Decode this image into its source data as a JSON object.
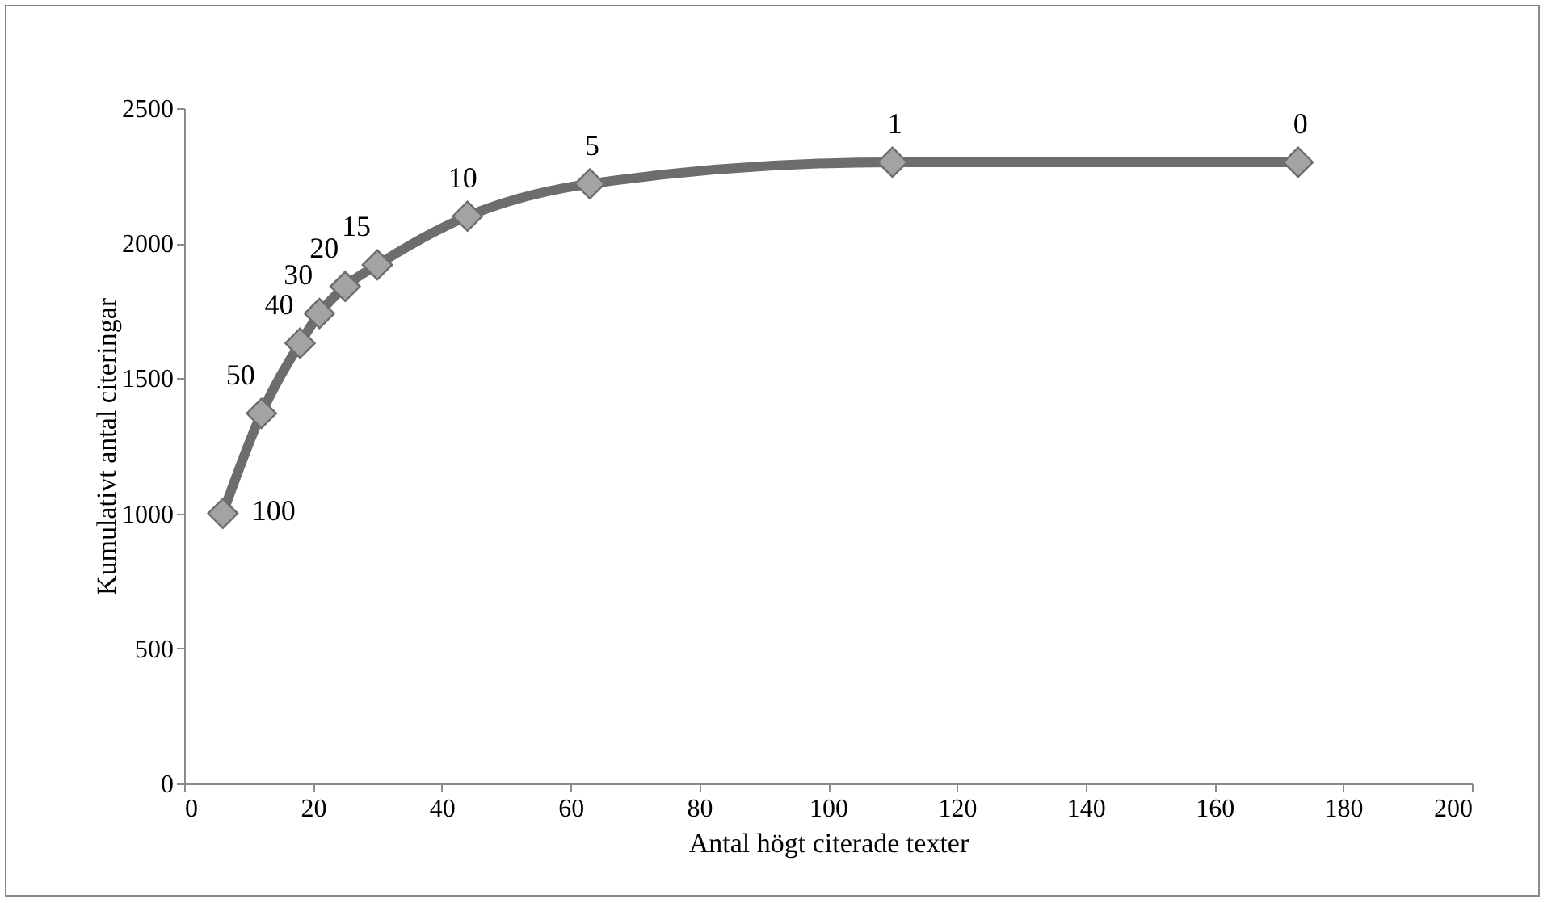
{
  "chart_data": {
    "type": "line",
    "xlabel": "Antal högt citerade texter",
    "ylabel": "Kumulativt antal citeringar",
    "x": [
      6,
      12,
      18,
      21,
      25,
      30,
      44,
      63,
      110,
      173
    ],
    "series": [
      {
        "color": "#6d6d6d",
        "values": [
          1000,
          1370,
          1630,
          1740,
          1840,
          1920,
          2100,
          2220,
          2300,
          2300
        ]
      }
    ],
    "xlim": [
      0,
      200
    ],
    "xticks": [
      0,
      20,
      40,
      60,
      80,
      100,
      120,
      140,
      160,
      180,
      200
    ],
    "ylim": [
      0,
      2500
    ],
    "yticks": [
      0,
      500,
      1000,
      1500,
      2000,
      2500
    ],
    "grid": false,
    "marker": "diamond",
    "line_style": "solid",
    "annotations": [
      {
        "text": "100",
        "x": 6,
        "y": 1000
      },
      {
        "text": "50",
        "x": 12,
        "y": 1370
      },
      {
        "text": "40",
        "x": 18,
        "y": 1630
      },
      {
        "text": "30",
        "x": 21,
        "y": 1740
      },
      {
        "text": "20",
        "x": 25,
        "y": 1840
      },
      {
        "text": "15",
        "x": 30,
        "y": 1920
      },
      {
        "text": "10",
        "x": 44,
        "y": 2100
      },
      {
        "text": "5",
        "x": 63,
        "y": 2220
      },
      {
        "text": "1",
        "x": 110,
        "y": 2300
      },
      {
        "text": "0",
        "x": 173,
        "y": 2300
      }
    ]
  }
}
